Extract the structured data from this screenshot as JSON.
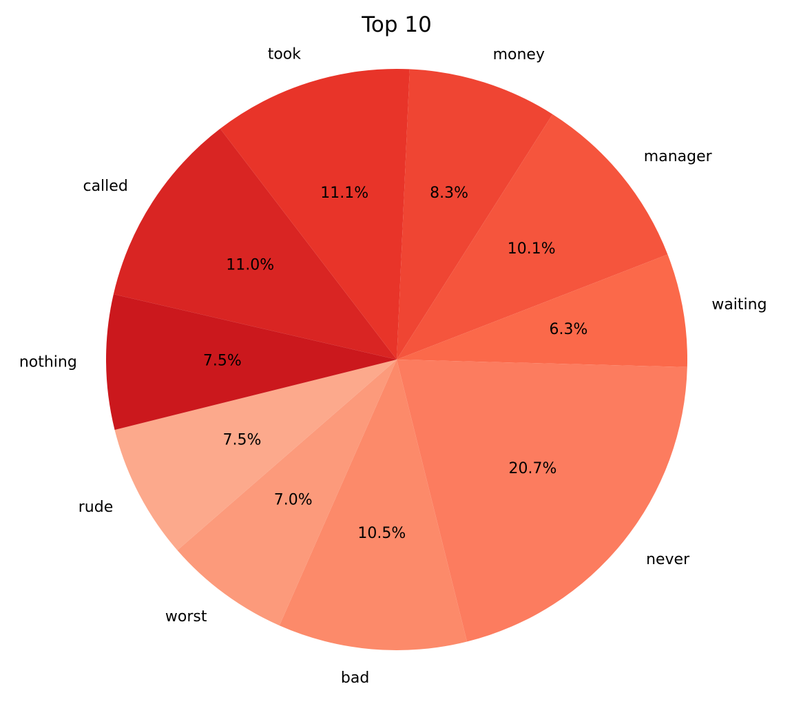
{
  "chart_data": {
    "type": "pie",
    "title": "Top 10 ",
    "categories": [
      "called",
      "took",
      "money",
      "manager",
      "waiting",
      "never",
      "bad",
      "worst",
      "rude",
      "nothing"
    ],
    "values": [
      11.0,
      11.1,
      8.3,
      10.1,
      6.3,
      20.7,
      10.5,
      7.0,
      7.5,
      7.5
    ],
    "value_labels": [
      "11.0%",
      "11.1%",
      "8.3%",
      "10.1%",
      "6.3%",
      "20.7%",
      "10.5%",
      "7.0%",
      "7.5%",
      "7.5%"
    ],
    "colors": [
      "#d92523",
      "#e83429",
      "#ef4533",
      "#f5553d",
      "#fb694a",
      "#fc7c5f",
      "#fc8a6a",
      "#fc9a7b",
      "#fca98c",
      "#cb181d"
    ],
    "start_angle_deg": 167,
    "direction": "clockwise",
    "legend": "none"
  }
}
